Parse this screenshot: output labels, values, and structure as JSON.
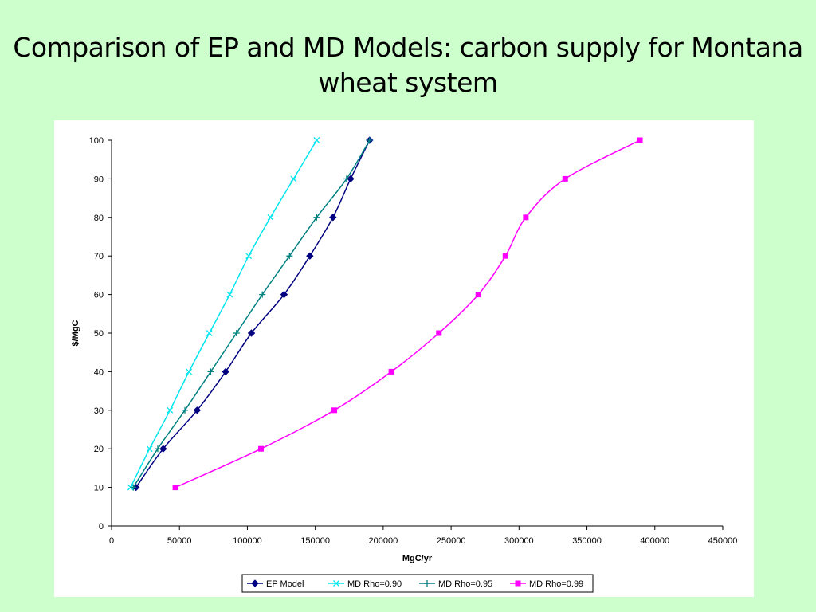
{
  "slide": {
    "title_line1": "Comparison of EP and MD Models: carbon supply for Montana",
    "title_line2": "wheat system"
  },
  "chart_data": {
    "type": "line",
    "title": "",
    "xlabel": "MgC/yr",
    "ylabel": "$/MgC",
    "xlim": [
      0,
      450000
    ],
    "ylim": [
      0,
      100
    ],
    "x_ticks": [
      0,
      50000,
      100000,
      150000,
      200000,
      250000,
      300000,
      350000,
      400000,
      450000
    ],
    "y_ticks": [
      0,
      10,
      20,
      30,
      40,
      50,
      60,
      70,
      80,
      90,
      100
    ],
    "grid": false,
    "legend_position": "bottom",
    "series": [
      {
        "name": "EP Model",
        "color": "#000080",
        "marker": "diamond",
        "points": [
          [
            18000,
            10
          ],
          [
            38000,
            20
          ],
          [
            63000,
            30
          ],
          [
            84000,
            40
          ],
          [
            103000,
            50
          ],
          [
            127000,
            60
          ],
          [
            146000,
            70
          ],
          [
            163000,
            80
          ],
          [
            176000,
            90
          ],
          [
            190000,
            100
          ]
        ]
      },
      {
        "name": "MD Rho=0.90",
        "color": "#00e5ee",
        "marker": "x",
        "points": [
          [
            14000,
            10
          ],
          [
            28000,
            20
          ],
          [
            43000,
            30
          ],
          [
            57000,
            40
          ],
          [
            72000,
            50
          ],
          [
            87000,
            60
          ],
          [
            101000,
            70
          ],
          [
            117000,
            80
          ],
          [
            134000,
            90
          ],
          [
            151000,
            100
          ]
        ]
      },
      {
        "name": "MD Rho=0.95",
        "color": "#008080",
        "marker": "plus",
        "points": [
          [
            16000,
            10
          ],
          [
            34000,
            20
          ],
          [
            54000,
            30
          ],
          [
            73000,
            40
          ],
          [
            92000,
            50
          ],
          [
            111000,
            60
          ],
          [
            131000,
            70
          ],
          [
            151000,
            80
          ],
          [
            173000,
            90
          ],
          [
            190000,
            100
          ]
        ]
      },
      {
        "name": "MD Rho=0.99",
        "color": "#ff00ff",
        "marker": "square",
        "points": [
          [
            47000,
            10
          ],
          [
            110000,
            20
          ],
          [
            164000,
            30
          ],
          [
            206000,
            40
          ],
          [
            241000,
            50
          ],
          [
            270000,
            60
          ],
          [
            290000,
            70
          ],
          [
            305000,
            80
          ],
          [
            334000,
            90
          ],
          [
            389000,
            100
          ]
        ]
      }
    ]
  }
}
